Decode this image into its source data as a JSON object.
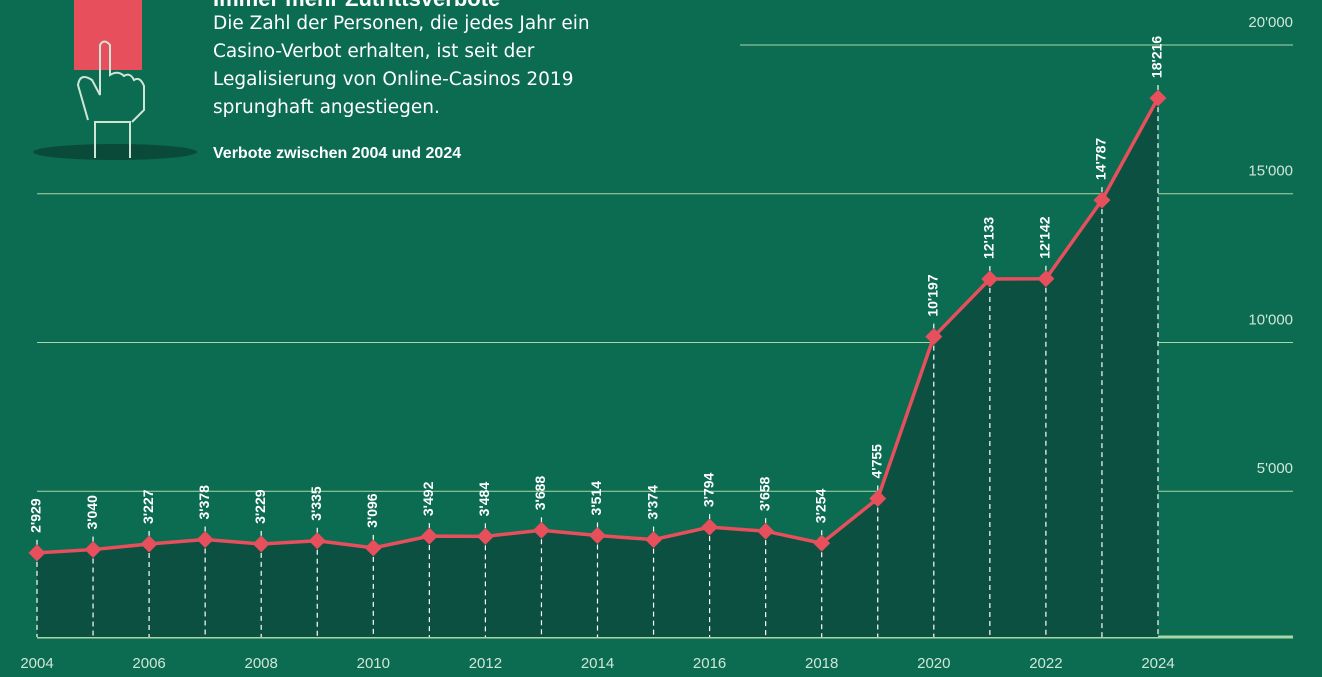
{
  "chart_data": {
    "type": "line",
    "title": "Immer mehr Zutrittsverbote",
    "subtitle": "Die Zahl der Personen, die jedes Jahr ein Casino-Verbot erhalten, ist seit der Legalisierung von Online-Casinos 2019 sprunghaft angestiegen.",
    "note": "Verbote zwischen 2004 und 2024",
    "x": [
      2004,
      2005,
      2006,
      2007,
      2008,
      2009,
      2010,
      2011,
      2012,
      2013,
      2014,
      2015,
      2016,
      2017,
      2018,
      2019,
      2020,
      2021,
      2022,
      2023,
      2024
    ],
    "values": [
      2929,
      3040,
      3227,
      3378,
      3229,
      3335,
      3096,
      3492,
      3484,
      3688,
      3514,
      3374,
      3794,
      3658,
      3254,
      4755,
      10197,
      12133,
      12142,
      14787,
      18216
    ],
    "value_labels": [
      "2'929",
      "3'040",
      "3'227",
      "3'378",
      "3'229",
      "3'335",
      "3'096",
      "3'492",
      "3'484",
      "3'688",
      "3'514",
      "3'374",
      "3'794",
      "3'658",
      "3'254",
      "4'755",
      "10'197",
      "12'133",
      "12'142",
      "14'787",
      "18'216"
    ],
    "color": "#e84f5c",
    "xlim": [
      2004,
      2024
    ],
    "xticks": [
      2004,
      2006,
      2008,
      2010,
      2012,
      2014,
      2016,
      2018,
      2020,
      2022,
      2024
    ],
    "ylim": [
      0,
      20000
    ],
    "yticks": [
      {
        "value": 5000,
        "label": "5'000"
      },
      {
        "value": 10000,
        "label": "10'000"
      },
      {
        "value": 15000,
        "label": "15'000"
      },
      {
        "value": 20000,
        "label": "20'000"
      }
    ],
    "grid": true
  }
}
